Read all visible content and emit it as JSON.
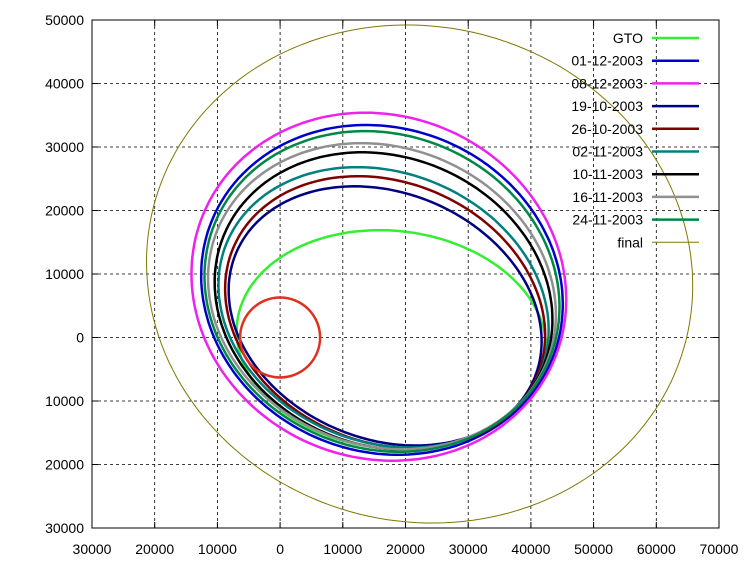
{
  "chart_data": {
    "type": "line",
    "grid": true,
    "legend_position": "top-right",
    "xlim": [
      -30000,
      70000
    ],
    "ylim": [
      -30000,
      50000
    ],
    "x_ticks": [
      -30000,
      -20000,
      -10000,
      0,
      10000,
      20000,
      30000,
      40000,
      50000,
      60000,
      70000
    ],
    "y_ticks": [
      -30000,
      -20000,
      -10000,
      0,
      10000,
      20000,
      30000,
      40000,
      50000
    ],
    "x_tick_labels": [
      "30000",
      "20000",
      "10000",
      "0",
      "10000",
      "20000",
      "30000",
      "40000",
      "50000",
      "60000",
      "70000"
    ],
    "y_tick_labels": [
      "30000",
      "20000",
      "10000",
      "0",
      "10000",
      "20000",
      "30000",
      "40000",
      "50000"
    ],
    "earth": {
      "center": [
        0,
        0
      ],
      "radius": 6378,
      "color": "#e0301e"
    },
    "series": [
      {
        "name": "GTO",
        "color": "#33ee33",
        "orbit": {
          "top": 16800,
          "bottom": -17500,
          "left": -7000,
          "right": 42500,
          "tilt_deg": -6
        }
      },
      {
        "name": "01-12-2003",
        "color": "#0000cc",
        "orbit": {
          "top": 33000,
          "bottom": -18000,
          "left": -13000,
          "right": 45500,
          "tilt_deg": -20
        }
      },
      {
        "name": "08-12-2003",
        "color": "#ee22ee",
        "orbit": {
          "top": 35000,
          "bottom": -19000,
          "left": -14500,
          "right": 46000,
          "tilt_deg": -20
        }
      },
      {
        "name": "19-10-2003",
        "color": "#000080",
        "orbit": {
          "top": 22800,
          "bottom": -16000,
          "left": -9000,
          "right": 42500,
          "tilt_deg": -22
        }
      },
      {
        "name": "26-10-2003",
        "color": "#800000",
        "orbit": {
          "top": 24500,
          "bottom": -16500,
          "left": -9500,
          "right": 43000,
          "tilt_deg": -22
        }
      },
      {
        "name": "02-11-2003",
        "color": "#008080",
        "orbit": {
          "top": 26000,
          "bottom": -16500,
          "left": -10500,
          "right": 43500,
          "tilt_deg": -21
        }
      },
      {
        "name": "10-11-2003",
        "color": "#000000",
        "orbit": {
          "top": 28500,
          "bottom": -17000,
          "left": -11000,
          "right": 44000,
          "tilt_deg": -21
        }
      },
      {
        "name": "16-11-2003",
        "color": "#909090",
        "orbit": {
          "top": 30000,
          "bottom": -17000,
          "left": -12000,
          "right": 44500,
          "tilt_deg": -20
        }
      },
      {
        "name": "24-11-2003",
        "color": "#008844",
        "orbit": {
          "top": 32000,
          "bottom": -17500,
          "left": -12500,
          "right": 45000,
          "tilt_deg": -20
        }
      },
      {
        "name": "final",
        "color": "#807800",
        "orbit": {
          "top": 49000,
          "bottom": -29000,
          "left": -21500,
          "right": 66000,
          "tilt_deg": -12
        }
      }
    ]
  }
}
